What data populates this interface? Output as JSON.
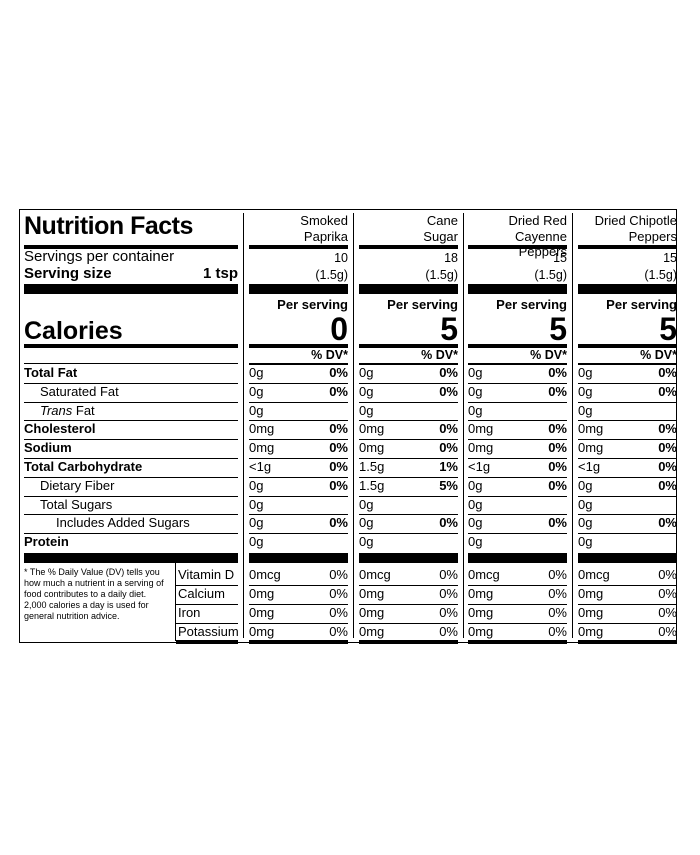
{
  "title": "Nutrition Facts",
  "servings_label": "Servings per container",
  "serving_size_label": "Serving size",
  "serving_size_value": "1 tsp",
  "calories_label": "Calories",
  "per_serving": "Per serving",
  "dv_header": "% DV*",
  "products": [
    {
      "name_line1": "Smoked",
      "name_line2": "Paprika",
      "servings": "10",
      "size": "(1.5g)",
      "calories": "0",
      "rows": [
        [
          "0g",
          "0%"
        ],
        [
          "0g",
          "0%"
        ],
        [
          "0g",
          ""
        ],
        [
          "0mg",
          "0%"
        ],
        [
          "0mg",
          "0%"
        ],
        [
          "<1g",
          "0%"
        ],
        [
          "0g",
          "0%"
        ],
        [
          "0g",
          ""
        ],
        [
          "0g",
          "0%"
        ],
        [
          "0g",
          ""
        ]
      ],
      "vitamins": [
        [
          "0mcg",
          "0%"
        ],
        [
          "0mg",
          "0%"
        ],
        [
          "0mg",
          "0%"
        ],
        [
          "0mg",
          "0%"
        ]
      ]
    },
    {
      "name_line1": "Cane",
      "name_line2": "Sugar",
      "servings": "18",
      "size": "(1.5g)",
      "calories": "5",
      "rows": [
        [
          "0g",
          "0%"
        ],
        [
          "0g",
          "0%"
        ],
        [
          "0g",
          ""
        ],
        [
          "0mg",
          "0%"
        ],
        [
          "0mg",
          "0%"
        ],
        [
          "1.5g",
          "1%"
        ],
        [
          "1.5g",
          "5%"
        ],
        [
          "0g",
          ""
        ],
        [
          "0g",
          "0%"
        ],
        [
          "0g",
          ""
        ]
      ],
      "vitamins": [
        [
          "0mcg",
          "0%"
        ],
        [
          "0mg",
          "0%"
        ],
        [
          "0mg",
          "0%"
        ],
        [
          "0mg",
          "0%"
        ]
      ]
    },
    {
      "name_line1": "Dried Red",
      "name_line2": "Cayenne Peppers",
      "servings": "15",
      "size": "(1.5g)",
      "calories": "5",
      "rows": [
        [
          "0g",
          "0%"
        ],
        [
          "0g",
          "0%"
        ],
        [
          "0g",
          ""
        ],
        [
          "0mg",
          "0%"
        ],
        [
          "0mg",
          "0%"
        ],
        [
          "<1g",
          "0%"
        ],
        [
          "0g",
          "0%"
        ],
        [
          "0g",
          ""
        ],
        [
          "0g",
          "0%"
        ],
        [
          "0g",
          ""
        ]
      ],
      "vitamins": [
        [
          "0mcg",
          "0%"
        ],
        [
          "0mg",
          "0%"
        ],
        [
          "0mg",
          "0%"
        ],
        [
          "0mg",
          "0%"
        ]
      ]
    },
    {
      "name_line1": "Dried Chipotle",
      "name_line2": "Peppers",
      "servings": "15",
      "size": "(1.5g)",
      "calories": "5",
      "rows": [
        [
          "0g",
          "0%"
        ],
        [
          "0g",
          "0%"
        ],
        [
          "0g",
          ""
        ],
        [
          "0mg",
          "0%"
        ],
        [
          "0mg",
          "0%"
        ],
        [
          "<1g",
          "0%"
        ],
        [
          "0g",
          "0%"
        ],
        [
          "0g",
          ""
        ],
        [
          "0g",
          "0%"
        ],
        [
          "0g",
          ""
        ]
      ],
      "vitamins": [
        [
          "0mcg",
          "0%"
        ],
        [
          "0mg",
          "0%"
        ],
        [
          "0mg",
          "0%"
        ],
        [
          "0mg",
          "0%"
        ]
      ]
    }
  ],
  "nutrients": [
    {
      "label": "Total Fat",
      "bold": true,
      "indent": 0
    },
    {
      "label": "Saturated Fat",
      "bold": false,
      "indent": 1
    },
    {
      "label": "Trans Fat",
      "bold": false,
      "indent": 1,
      "italic_prefix": "Trans"
    },
    {
      "label": "Cholesterol",
      "bold": true,
      "indent": 0
    },
    {
      "label": "Sodium",
      "bold": true,
      "indent": 0
    },
    {
      "label": "Total Carbohydrate",
      "bold": true,
      "indent": 0
    },
    {
      "label": "Dietary Fiber",
      "bold": false,
      "indent": 1
    },
    {
      "label": "Total Sugars",
      "bold": false,
      "indent": 1
    },
    {
      "label": "Includes Added Sugars",
      "bold": false,
      "indent": 2
    },
    {
      "label": "Protein",
      "bold": true,
      "indent": 0
    }
  ],
  "vitamin_labels": [
    "Vitamin D",
    "Calcium",
    "Iron",
    "Potassium"
  ],
  "footnote": "* The % Daily Value (DV) tells you how much a nutrient in a serving of food contributes to a daily diet. 2,000 calories a day is used for general nutrition advice."
}
